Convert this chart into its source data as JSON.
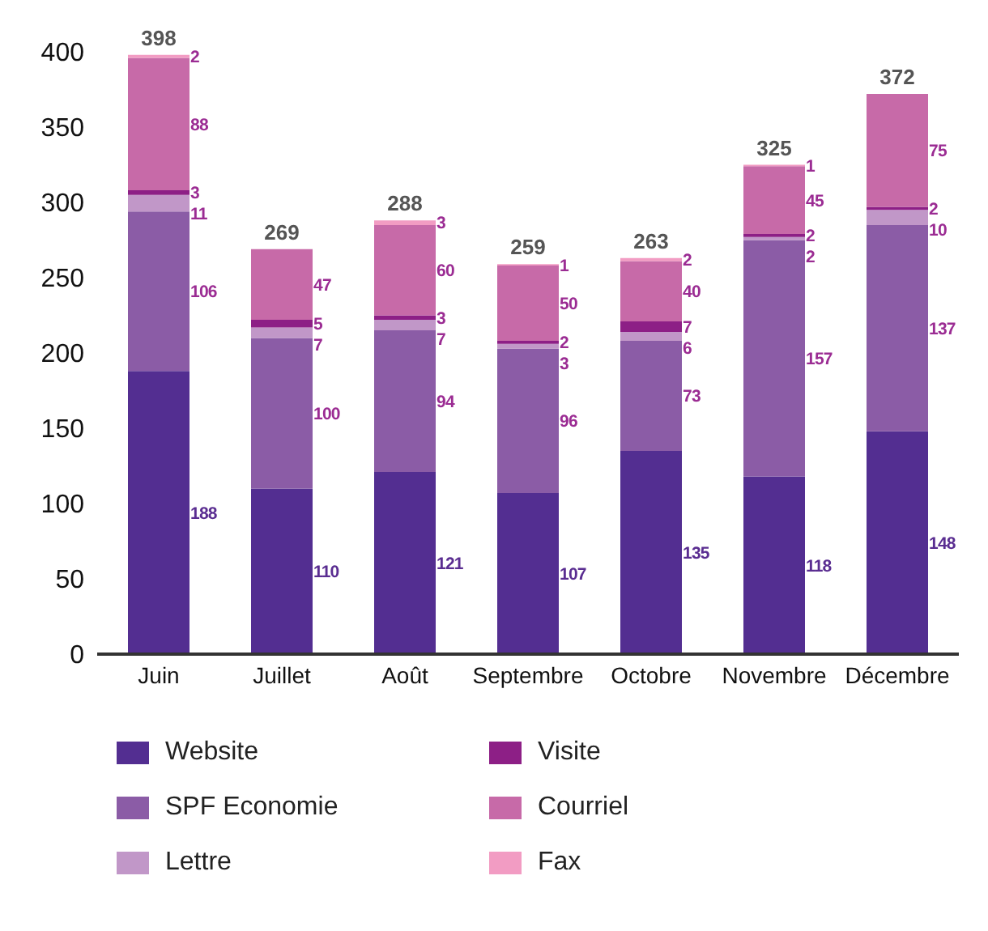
{
  "chart_data": {
    "type": "bar",
    "stacked": true,
    "categories": [
      "Juin",
      "Juillet",
      "Août",
      "Septembre",
      "Octobre",
      "Novembre",
      "Décembre"
    ],
    "series": [
      {
        "name": "Website",
        "color": "#532e91",
        "values": [
          188,
          110,
          121,
          107,
          135,
          118,
          148
        ]
      },
      {
        "name": "SPF Economie",
        "color": "#8b5ca6",
        "values": [
          106,
          100,
          94,
          96,
          73,
          157,
          137
        ]
      },
      {
        "name": "Lettre",
        "color": "#c197c8",
        "values": [
          11,
          7,
          7,
          3,
          6,
          2,
          10
        ]
      },
      {
        "name": "Visite",
        "color": "#8d1f86",
        "values": [
          3,
          5,
          3,
          2,
          7,
          2,
          2
        ]
      },
      {
        "name": "Courriel",
        "color": "#c76aa8",
        "values": [
          88,
          47,
          60,
          50,
          40,
          45,
          75
        ]
      },
      {
        "name": "Fax",
        "color": "#f29cc3",
        "values": [
          2,
          null,
          3,
          1,
          2,
          1,
          null
        ]
      }
    ],
    "data_labels": true,
    "totals": [
      "398",
      "269",
      "288",
      "259",
      "263",
      "325",
      "372"
    ],
    "ylim": [
      0,
      400
    ],
    "yticks": [
      0,
      50,
      100,
      150,
      200,
      250,
      300,
      350,
      400
    ],
    "grid": false,
    "legend": "bottom"
  }
}
